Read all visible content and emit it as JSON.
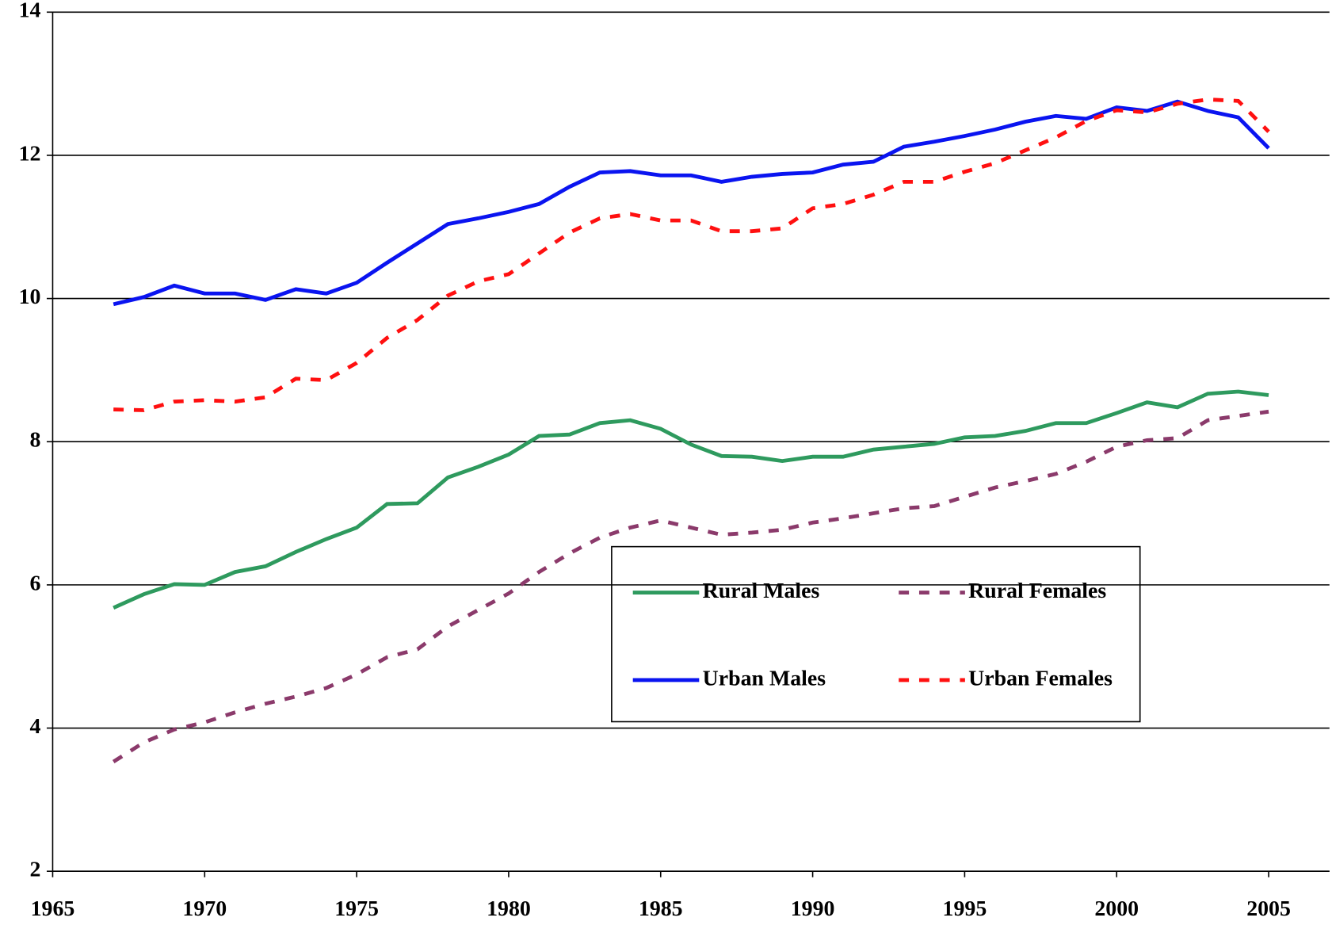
{
  "chart_data": {
    "type": "line",
    "x": [
      1967,
      1968,
      1969,
      1970,
      1971,
      1972,
      1973,
      1974,
      1975,
      1976,
      1977,
      1978,
      1979,
      1980,
      1981,
      1982,
      1983,
      1984,
      1985,
      1986,
      1987,
      1988,
      1989,
      1990,
      1991,
      1992,
      1993,
      1994,
      1995,
      1996,
      1997,
      1998,
      1999,
      2000,
      2001,
      2002,
      2003,
      2004,
      2005
    ],
    "series": [
      {
        "name": "Rural Males",
        "color": "#2e9a5e",
        "dashed": false,
        "values": [
          5.68,
          5.87,
          6.01,
          6.0,
          6.18,
          6.26,
          6.46,
          6.64,
          6.8,
          7.13,
          7.14,
          7.5,
          7.65,
          7.82,
          8.08,
          8.1,
          8.26,
          8.3,
          8.18,
          7.96,
          7.8,
          7.79,
          7.73,
          7.79,
          7.79,
          7.89,
          7.93,
          7.97,
          8.06,
          8.08,
          8.15,
          8.26,
          8.26,
          8.4,
          8.55,
          8.48,
          8.67,
          8.7,
          8.65
        ]
      },
      {
        "name": "Rural Females",
        "color": "#8b3a6b",
        "dashed": true,
        "values": [
          3.53,
          3.8,
          3.98,
          4.08,
          4.22,
          4.34,
          4.44,
          4.56,
          4.75,
          4.99,
          5.1,
          5.42,
          5.65,
          5.88,
          6.18,
          6.44,
          6.66,
          6.8,
          6.9,
          6.8,
          6.7,
          6.73,
          6.77,
          6.87,
          6.93,
          7.0,
          7.07,
          7.1,
          7.23,
          7.36,
          7.45,
          7.55,
          7.72,
          7.93,
          8.02,
          8.05,
          8.3,
          8.36,
          8.42
        ]
      },
      {
        "name": "Urban Males",
        "color": "#0a14f0",
        "dashed": false,
        "values": [
          9.92,
          10.02,
          10.18,
          10.07,
          10.07,
          9.98,
          10.13,
          10.07,
          10.22,
          10.5,
          10.77,
          11.04,
          11.12,
          11.21,
          11.32,
          11.56,
          11.76,
          11.78,
          11.72,
          11.72,
          11.63,
          11.7,
          11.74,
          11.76,
          11.87,
          11.91,
          12.12,
          12.19,
          12.27,
          12.36,
          12.47,
          12.55,
          12.51,
          12.67,
          12.62,
          12.75,
          12.62,
          12.53,
          12.1
        ]
      },
      {
        "name": "Urban Females",
        "color": "#ff1010",
        "dashed": true,
        "values": [
          8.45,
          8.44,
          8.56,
          8.58,
          8.56,
          8.62,
          8.88,
          8.86,
          9.1,
          9.45,
          9.7,
          10.04,
          10.24,
          10.34,
          10.63,
          10.92,
          11.12,
          11.18,
          11.09,
          11.09,
          10.94,
          10.94,
          10.98,
          11.26,
          11.32,
          11.45,
          11.63,
          11.63,
          11.77,
          11.89,
          12.07,
          12.25,
          12.48,
          12.63,
          12.6,
          12.72,
          12.78,
          12.76,
          12.33
        ]
      }
    ],
    "xlim": [
      1965,
      2007
    ],
    "xticks": [
      1965,
      1970,
      1975,
      1980,
      1985,
      1990,
      1995,
      2000,
      2005
    ],
    "ylim": [
      2,
      14
    ],
    "yticks": [
      2,
      4,
      6,
      8,
      10,
      12,
      14
    ],
    "grid": true
  }
}
